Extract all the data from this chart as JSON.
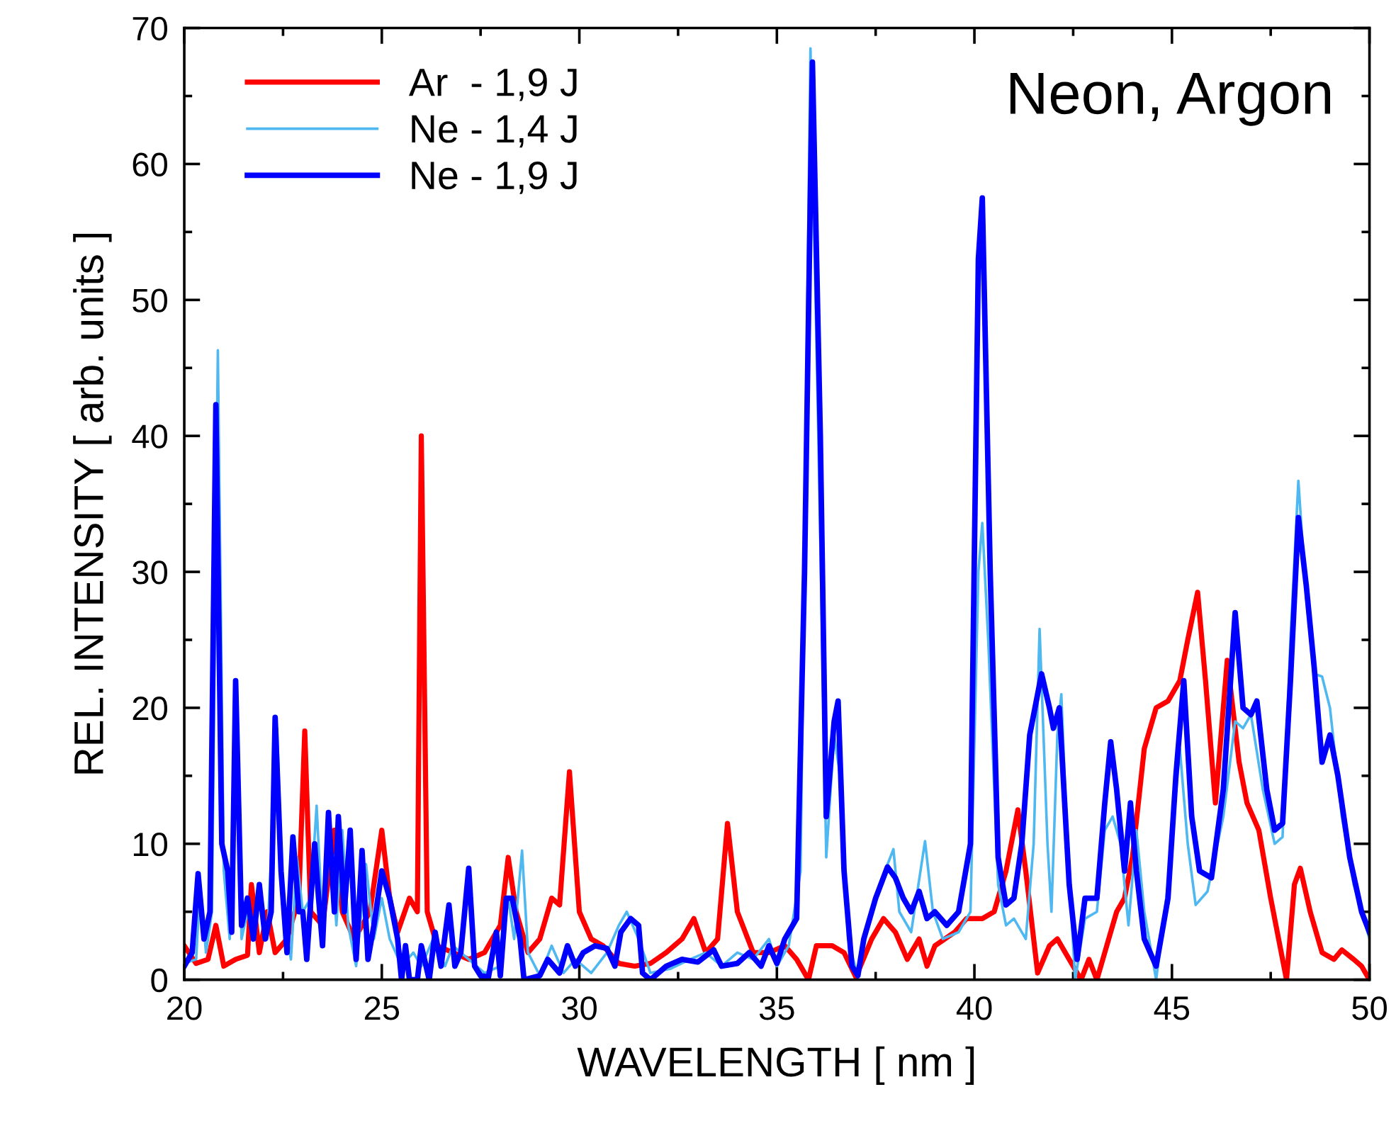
{
  "chart_data": {
    "type": "line",
    "title": "Neon, Argon",
    "xlabel": "WAVELENGTH [ nm ]",
    "ylabel": "REL. INTENSITY [ arb. units ]",
    "xlim": [
      20,
      50
    ],
    "xticks": [
      20,
      25,
      30,
      35,
      40,
      45,
      50
    ],
    "ylim": [
      0,
      70
    ],
    "yticks": [
      0,
      10,
      20,
      30,
      40,
      50,
      60,
      70
    ],
    "grid": false,
    "legend": "top left",
    "marker": "none",
    "line_style": "solid",
    "series": [
      {
        "name": "Ar  - 1,9 J",
        "color": "#ff0000",
        "x": [
          20.0,
          20.3,
          20.6,
          20.8,
          21.0,
          21.3,
          21.6,
          21.7,
          21.9,
          22.1,
          22.3,
          22.6,
          22.9,
          23.05,
          23.2,
          23.5,
          23.8,
          24.0,
          24.3,
          24.7,
          25.0,
          25.2,
          25.4,
          25.7,
          25.9,
          26.0,
          26.15,
          26.4,
          26.8,
          27.2,
          27.6,
          28.0,
          28.2,
          28.4,
          28.7,
          29.0,
          29.3,
          29.5,
          29.75,
          30.0,
          30.3,
          30.6,
          31.0,
          31.4,
          31.8,
          32.2,
          32.6,
          32.9,
          33.2,
          33.5,
          33.75,
          34.0,
          34.4,
          34.8,
          35.2,
          35.5,
          35.8,
          36.0,
          36.4,
          36.7,
          37.0,
          37.4,
          37.7,
          38.0,
          38.3,
          38.6,
          38.8,
          39.0,
          39.5,
          39.8,
          40.2,
          40.5,
          40.8,
          41.1,
          41.3,
          41.6,
          41.9,
          42.1,
          42.5,
          42.7,
          42.9,
          43.1,
          43.4,
          43.6,
          43.8,
          44.0,
          44.3,
          44.6,
          44.9,
          45.2,
          45.4,
          45.65,
          45.85,
          46.1,
          46.4,
          46.7,
          46.9,
          47.2,
          47.5,
          47.7,
          47.9,
          48.1,
          48.25,
          48.5,
          48.8,
          49.1,
          49.3,
          49.6,
          49.8,
          50.0
        ],
        "values": [
          2.5,
          1.2,
          1.5,
          4,
          1,
          1.5,
          1.8,
          7,
          2,
          5,
          2,
          3,
          6,
          18.3,
          5,
          4,
          11,
          5,
          3,
          5,
          11,
          6,
          3.5,
          6,
          5,
          40,
          5,
          2.5,
          2,
          1.5,
          2,
          4,
          9,
          5,
          2,
          3,
          6,
          5.5,
          15.3,
          5,
          3,
          2.5,
          1.2,
          1,
          1.2,
          2,
          3,
          4.5,
          2,
          3,
          11.5,
          5,
          2,
          2,
          2.5,
          1.5,
          0,
          2.5,
          2.5,
          2,
          0.2,
          3,
          4.5,
          3.5,
          1.5,
          3,
          1,
          2.5,
          3.5,
          4.5,
          4.5,
          5,
          8,
          12.5,
          8,
          0.5,
          2.5,
          3,
          1,
          0,
          1.5,
          0,
          3,
          5,
          6,
          9,
          17,
          20,
          20.5,
          22,
          25,
          28.5,
          22,
          13,
          23.5,
          16,
          13,
          11,
          6,
          3,
          0,
          7,
          8.2,
          5,
          2,
          1.5,
          2.2,
          1.5,
          1,
          0
        ]
      },
      {
        "name": "Ne - 1,4 J",
        "color": "#4fb8f0",
        "x": [
          20.0,
          20.3,
          20.4,
          20.55,
          20.7,
          20.85,
          21.0,
          21.15,
          21.3,
          21.45,
          21.6,
          21.75,
          21.9,
          22.1,
          22.35,
          22.5,
          22.7,
          22.85,
          23.0,
          23.2,
          23.35,
          23.5,
          23.7,
          23.85,
          24.0,
          24.15,
          24.35,
          24.6,
          24.8,
          25.0,
          25.2,
          25.5,
          25.8,
          26.0,
          26.3,
          26.6,
          26.8,
          27.2,
          27.6,
          28.0,
          28.2,
          28.35,
          28.55,
          28.7,
          29.0,
          29.3,
          29.6,
          29.9,
          30.3,
          30.7,
          31.0,
          31.2,
          31.5,
          31.8,
          32.3,
          32.8,
          33.2,
          33.6,
          34.0,
          34.4,
          34.8,
          35.0,
          35.3,
          35.6,
          35.85,
          36.05,
          36.25,
          36.45,
          36.6,
          36.8,
          37.05,
          37.3,
          37.6,
          37.95,
          38.1,
          38.4,
          38.75,
          38.95,
          39.2,
          39.6,
          39.9,
          40.1,
          40.2,
          40.35,
          40.6,
          40.8,
          41.0,
          41.3,
          41.5,
          41.65,
          41.85,
          41.95,
          42.1,
          42.2,
          42.35,
          42.55,
          42.8,
          43.1,
          43.3,
          43.5,
          43.7,
          43.9,
          44.1,
          44.3,
          44.6,
          44.9,
          45.2,
          45.4,
          45.6,
          45.9,
          46.3,
          46.6,
          46.8,
          47.0,
          47.3,
          47.6,
          47.8,
          48.0,
          48.2,
          48.4,
          48.6,
          48.8,
          49.0,
          49.3,
          49.6,
          49.8,
          50.0
        ],
        "values": [
          1.2,
          1.5,
          7,
          2,
          5,
          46.3,
          8,
          3,
          20,
          3,
          5,
          3,
          6.5,
          3,
          18.5,
          5,
          1.5,
          9,
          5,
          6,
          12.8,
          4,
          11,
          4,
          11,
          4,
          1,
          8.5,
          3,
          6,
          3,
          1,
          2,
          1,
          3,
          1,
          2.5,
          1.5,
          0.5,
          1,
          6,
          3,
          9.5,
          2,
          0.3,
          2.5,
          0.5,
          1.5,
          0.5,
          2,
          4,
          5,
          3,
          0.5,
          0.8,
          1.5,
          2,
          1,
          2,
          1.5,
          3,
          1,
          2.5,
          8,
          68.5,
          40,
          9,
          18,
          15,
          3,
          0.2,
          4,
          7,
          9.6,
          5,
          3.5,
          10.2,
          5,
          3,
          3.5,
          5,
          30,
          33.6,
          25,
          7,
          4,
          4.5,
          3,
          10,
          25.8,
          10,
          5,
          18,
          21,
          10,
          0,
          4.5,
          5,
          11,
          12,
          10,
          4,
          11,
          5,
          0,
          7,
          17,
          10,
          5.5,
          6.5,
          12,
          19,
          18.5,
          19.5,
          14,
          10,
          10.5,
          25,
          36.7,
          28,
          22.5,
          22.3,
          20,
          12,
          7,
          5,
          3
        ]
      },
      {
        "name": "Ne - 1,9 J",
        "color": "#0000ff",
        "x": [
          20.0,
          20.2,
          20.35,
          20.5,
          20.65,
          20.8,
          20.95,
          21.1,
          21.2,
          21.3,
          21.45,
          21.6,
          21.75,
          21.9,
          22.05,
          22.2,
          22.3,
          22.45,
          22.6,
          22.75,
          22.9,
          23.0,
          23.1,
          23.3,
          23.4,
          23.5,
          23.65,
          23.8,
          23.9,
          24.05,
          24.2,
          24.35,
          24.5,
          24.65,
          24.8,
          25.0,
          25.2,
          25.4,
          25.5,
          25.6,
          25.7,
          25.9,
          26.0,
          26.2,
          26.35,
          26.5,
          26.7,
          26.85,
          27.0,
          27.2,
          27.35,
          27.5,
          27.7,
          27.9,
          28.0,
          28.15,
          28.3,
          28.5,
          28.6,
          29.0,
          29.2,
          29.5,
          29.7,
          29.9,
          30.1,
          30.4,
          30.7,
          30.9,
          31.05,
          31.3,
          31.5,
          31.6,
          31.8,
          32.2,
          32.6,
          33.0,
          33.4,
          33.6,
          34.0,
          34.3,
          34.6,
          34.8,
          35.0,
          35.2,
          35.5,
          35.7,
          35.9,
          36.1,
          36.25,
          36.45,
          36.55,
          36.7,
          36.9,
          37.05,
          37.2,
          37.5,
          37.8,
          38.0,
          38.2,
          38.4,
          38.6,
          38.8,
          39.0,
          39.3,
          39.6,
          39.9,
          40.1,
          40.2,
          40.4,
          40.6,
          40.8,
          41.0,
          41.2,
          41.4,
          41.7,
          41.9,
          42.0,
          42.15,
          42.4,
          42.6,
          42.8,
          43.1,
          43.3,
          43.45,
          43.6,
          43.8,
          43.95,
          44.1,
          44.3,
          44.6,
          44.9,
          45.1,
          45.3,
          45.5,
          45.7,
          46.0,
          46.3,
          46.6,
          46.8,
          47.0,
          47.15,
          47.4,
          47.6,
          47.8,
          48.0,
          48.2,
          48.4,
          48.6,
          48.8,
          49.0,
          49.2,
          49.5,
          49.8,
          50.0
        ],
        "values": [
          1,
          2,
          7.8,
          3,
          5,
          42.3,
          10,
          8,
          3.5,
          22,
          4,
          6,
          3,
          7,
          3,
          5,
          19.3,
          8,
          2,
          10.5,
          5,
          5,
          1.5,
          10,
          6,
          2.5,
          12.3,
          5,
          12,
          5,
          11,
          1.5,
          9.5,
          1.5,
          4,
          8,
          6,
          3,
          0,
          2.5,
          0,
          0,
          2.5,
          0,
          3.5,
          1,
          5.5,
          1,
          2,
          8.2,
          1,
          0.3,
          0.2,
          3.5,
          0.3,
          6,
          6,
          3,
          0,
          0.3,
          1.5,
          0.5,
          2.5,
          1,
          2,
          2.5,
          2.3,
          1,
          3.5,
          4.5,
          4,
          0.5,
          0,
          1,
          1.5,
          1.3,
          2.2,
          1,
          1.2,
          2,
          1,
          2.5,
          1.2,
          3,
          4.5,
          30,
          67.5,
          40,
          12,
          19,
          20.5,
          8,
          1,
          0.3,
          3,
          6,
          8.3,
          7.5,
          6,
          5,
          6.5,
          4.5,
          5,
          4,
          5,
          10,
          53,
          57.5,
          30,
          9,
          5.5,
          6,
          10,
          18,
          22.5,
          20,
          18.5,
          20,
          7,
          1.5,
          6,
          6,
          13,
          17.5,
          14,
          8,
          13,
          8,
          3,
          1,
          6,
          15,
          22,
          12,
          8,
          7.5,
          14,
          27,
          20,
          19.5,
          20.5,
          14,
          11,
          11.5,
          22,
          34,
          29,
          23,
          16,
          18,
          15,
          9,
          5,
          3.5
        ]
      }
    ]
  }
}
